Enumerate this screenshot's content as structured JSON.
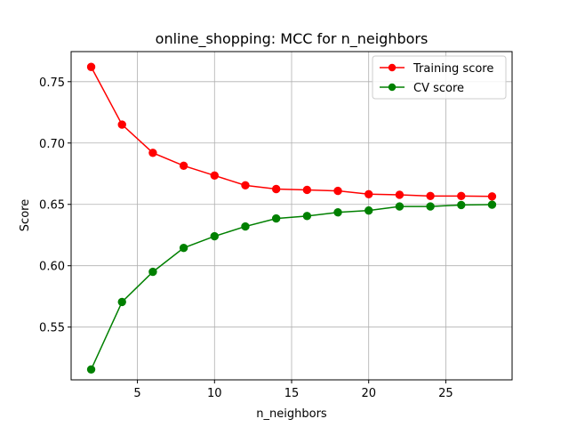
{
  "chart_data": {
    "type": "line",
    "title": "online_shopping: MCC for n_neighbors",
    "xlabel": "n_neighbors",
    "ylabel": "Score",
    "xlim": [
      0.7,
      29.3
    ],
    "ylim": [
      0.507,
      0.7745
    ],
    "xticks": [
      5,
      10,
      15,
      20,
      25
    ],
    "xtick_labels": [
      "5",
      "10",
      "15",
      "20",
      "25"
    ],
    "yticks": [
      0.55,
      0.6,
      0.65,
      0.7,
      0.75
    ],
    "ytick_labels": [
      "0.55",
      "0.60",
      "0.65",
      "0.70",
      "0.75"
    ],
    "grid": true,
    "legend_position": "top-right",
    "x": [
      2,
      4,
      6,
      8,
      10,
      12,
      14,
      16,
      18,
      20,
      22,
      24,
      26,
      28
    ],
    "series": [
      {
        "name": "Training score",
        "color": "#ff0000",
        "values": [
          0.762,
          0.715,
          0.692,
          0.6815,
          0.6735,
          0.6655,
          0.6625,
          0.6618,
          0.661,
          0.6583,
          0.6578,
          0.6568,
          0.6568,
          0.6565
        ]
      },
      {
        "name": "CV score",
        "color": "#008000",
        "values": [
          0.5155,
          0.5705,
          0.595,
          0.6145,
          0.624,
          0.632,
          0.6385,
          0.6405,
          0.6435,
          0.645,
          0.6483,
          0.6483,
          0.6495,
          0.6498
        ]
      }
    ]
  }
}
